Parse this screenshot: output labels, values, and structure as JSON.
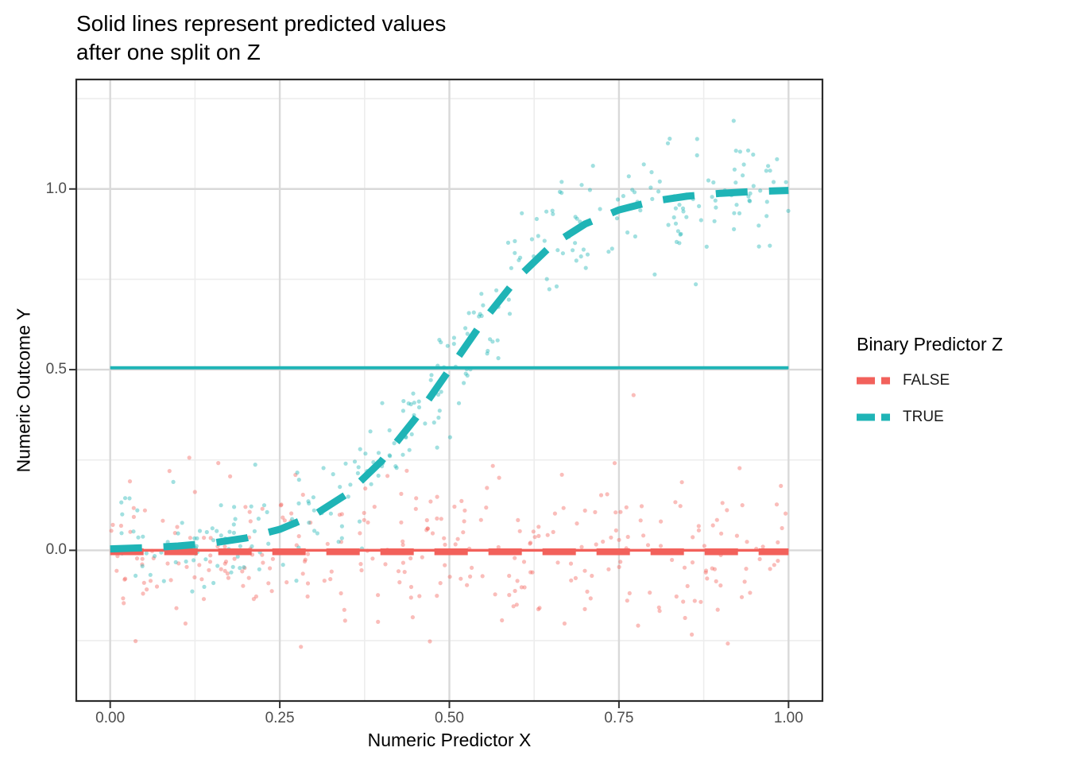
{
  "title": {
    "line1": "Solid lines represent predicted values",
    "line2": "after one split on Z"
  },
  "axes": {
    "x": {
      "label": "Numeric Predictor X",
      "tick_labels": [
        "0.00",
        "0.25",
        "0.50",
        "0.75",
        "1.00"
      ],
      "tick_values": [
        0,
        0.25,
        0.5,
        0.75,
        1
      ],
      "minor_ticks": [
        0.125,
        0.375,
        0.625,
        0.875
      ],
      "range": [
        -0.05,
        1.05
      ]
    },
    "y": {
      "label": "Numeric Outcome Y",
      "tick_labels": [
        "0.0",
        "0.5",
        "1.0"
      ],
      "tick_values": [
        0,
        0.5,
        1
      ],
      "minor_ticks": [
        -0.25,
        0.25,
        0.75,
        1.25
      ],
      "range": [
        -0.417,
        1.303
      ]
    }
  },
  "legend": {
    "title": "Binary Predictor Z",
    "items": [
      {
        "label": "FALSE",
        "color": "#F2615B"
      },
      {
        "label": "TRUE",
        "color": "#1FB4B6"
      }
    ]
  },
  "colors": {
    "false_series": "#F2615B",
    "true_series": "#1FB4B6",
    "grid_major": "#D9D9D9",
    "grid_minor": "#EDEDED",
    "panel_border": "#2B2B2B",
    "axis_tick": "#333333",
    "tick_text": "#4D4D4D",
    "title_text": "#000000"
  },
  "chart_data": {
    "type": "scatter",
    "title": "Solid lines represent predicted values after one split on Z",
    "xlabel": "Numeric Predictor X",
    "ylabel": "Numeric Outcome Y",
    "xlim": [
      -0.05,
      1.05
    ],
    "ylim": [
      -0.417,
      1.303
    ],
    "grid": "on",
    "legend_position": "right",
    "legend_title": "Binary Predictor Z",
    "series": [
      {
        "name": "FALSE",
        "color": "#F2615B",
        "scatter": {
          "n": 300,
          "seed": 42,
          "x_dist": "uniform_0_1",
          "y_model": "constant",
          "y_value": 0,
          "noise_sd": 0.11,
          "alpha": 0.42
        },
        "solid_line": {
          "y": 0.0,
          "x_start": 0,
          "x_end": 1
        },
        "dashed_line": {
          "shape": "constant",
          "y": -0.004,
          "x_start": 0,
          "x_end": 1
        }
      },
      {
        "name": "TRUE",
        "color": "#1FB4B6",
        "scatter": {
          "n": 300,
          "seed": 1337,
          "x_dist": "uniform_0_1",
          "y_model": "logistic",
          "center": 0.5,
          "scale": 0.09,
          "noise_sd": 0.085,
          "alpha": 0.42
        },
        "solid_line": {
          "y": 0.505,
          "x_start": 0,
          "x_end": 1
        },
        "dashed_line": {
          "shape": "curve",
          "x": [
            0,
            0.05,
            0.1,
            0.15,
            0.2,
            0.25,
            0.3,
            0.35,
            0.4,
            0.45,
            0.5,
            0.55,
            0.6,
            0.65,
            0.7,
            0.75,
            0.8,
            0.85,
            0.9,
            0.95,
            1
          ],
          "y": [
            0.004,
            0.007,
            0.012,
            0.02,
            0.034,
            0.058,
            0.097,
            0.157,
            0.247,
            0.365,
            0.5,
            0.635,
            0.753,
            0.843,
            0.903,
            0.942,
            0.966,
            0.98,
            0.988,
            0.993,
            0.996
          ]
        }
      }
    ]
  }
}
